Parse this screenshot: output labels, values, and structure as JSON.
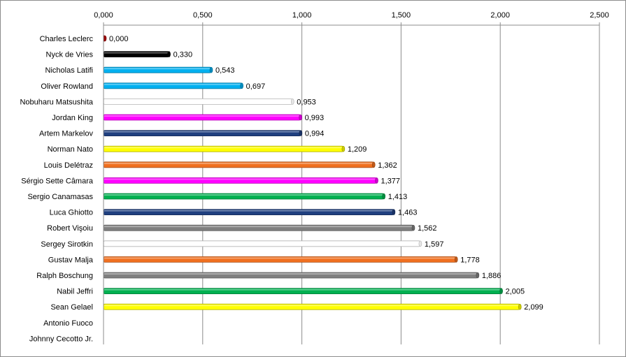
{
  "chart_data": {
    "type": "bar",
    "orientation": "horizontal",
    "categories": [
      "Charles Leclerc",
      "Nyck de Vries",
      "Nicholas Latifi",
      "Oliver Rowland",
      "Nobuharu Matsushita",
      "Jordan King",
      "Artem Markelov",
      "Norman Nato",
      "Louis Delétraz",
      "Sérgio Sette Câmara",
      "Sergio Canamasas",
      "Luca Ghiotto",
      "Robert Vişoiu",
      "Sergey Sirotkin",
      "Gustav Malja",
      "Ralph Boschung",
      "Nabil Jeffri",
      "Sean Gelael",
      "Antonio Fuoco",
      "Johnny Cecotto Jr."
    ],
    "values": [
      0.0,
      0.33,
      0.543,
      0.697,
      0.953,
      0.993,
      0.994,
      1.209,
      1.362,
      1.377,
      1.413,
      1.463,
      1.562,
      1.597,
      1.778,
      1.886,
      2.005,
      2.099,
      null,
      null
    ],
    "value_labels": [
      "0,000",
      "0,330",
      "0,543",
      "0,697",
      "0,953",
      "0,993",
      "0,994",
      "1,209",
      "1,362",
      "1,377",
      "1,413",
      "1,463",
      "1,562",
      "1,597",
      "1,778",
      "1,886",
      "2,005",
      "2,099",
      "",
      ""
    ],
    "bar_colors": [
      "#c00000",
      "#000000",
      "#00b0f0",
      "#00b0f0",
      "#ffffff",
      "#ff00ff",
      "#1f3f7f",
      "#ffff00",
      "#f07020",
      "#ff00ff",
      "#00b050",
      "#1f3f7f",
      "#808080",
      "#ffffff",
      "#f07020",
      "#808080",
      "#00b050",
      "#ffff00",
      "#ffffff",
      "#ffffff"
    ],
    "xlim": [
      0,
      2.5
    ],
    "x_ticks": [
      0,
      0.5,
      1.0,
      1.5,
      2.0,
      2.5
    ],
    "x_tick_labels": [
      "0,000",
      "0,500",
      "1,000",
      "1,500",
      "2,000",
      "2,500"
    ],
    "x_axis_position": "top",
    "grid": true,
    "legend": "none",
    "title": "",
    "xlabel": "",
    "ylabel": ""
  }
}
